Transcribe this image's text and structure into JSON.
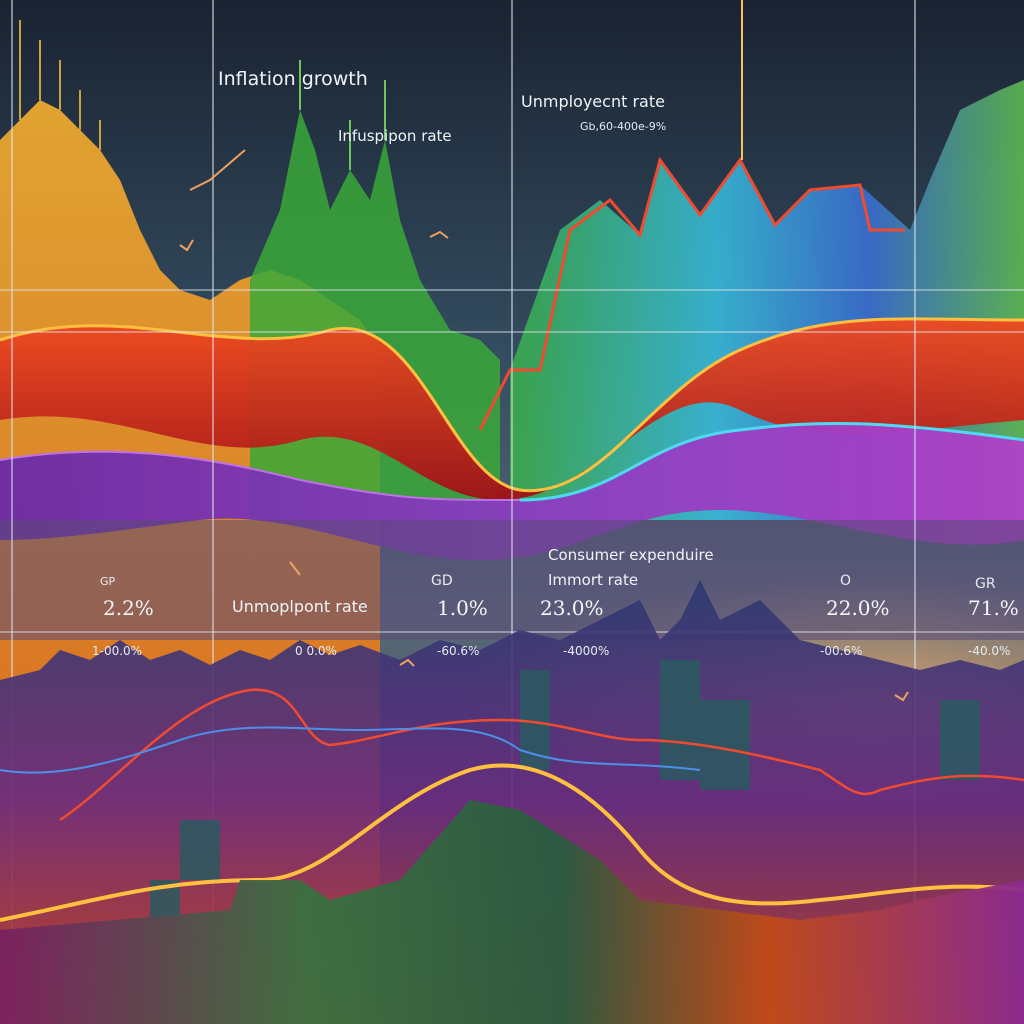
{
  "top_labels": {
    "inflation_growth": "Inflation growth",
    "infusion_rate": "Infuspipon rate",
    "unemployment_rate": "Unmployecnt rate",
    "small_range": "Gb,60-400e-9%"
  },
  "mid_labels": {
    "consumer_expenditure": "Consumer expenduire",
    "import_rate": "Immort rate",
    "unemployment_rate_2": "Unmoplpont rate",
    "gd_a": "GD",
    "gd_b": "GR",
    "small_a": "GP",
    "small_b": "O"
  },
  "big_values": [
    "2.2%",
    "1.0%",
    "23.0%",
    "22.0%",
    "71.%"
  ],
  "small_values": [
    "1-00.0%",
    "0 0.0%",
    "-60.6%",
    "-4000%",
    "-00.6%",
    "-40.0%"
  ],
  "colors": {
    "sky_top": "#1b2636",
    "sky_mid": "#3a5568",
    "orange": "#f0a020",
    "red": "#d8281e",
    "green": "#3aa838",
    "purple": "#8a3cc0",
    "blue": "#3a7ad8",
    "cyan": "#40c8e8",
    "magenta": "#c038c8",
    "grid": "#dfe6ee"
  }
}
